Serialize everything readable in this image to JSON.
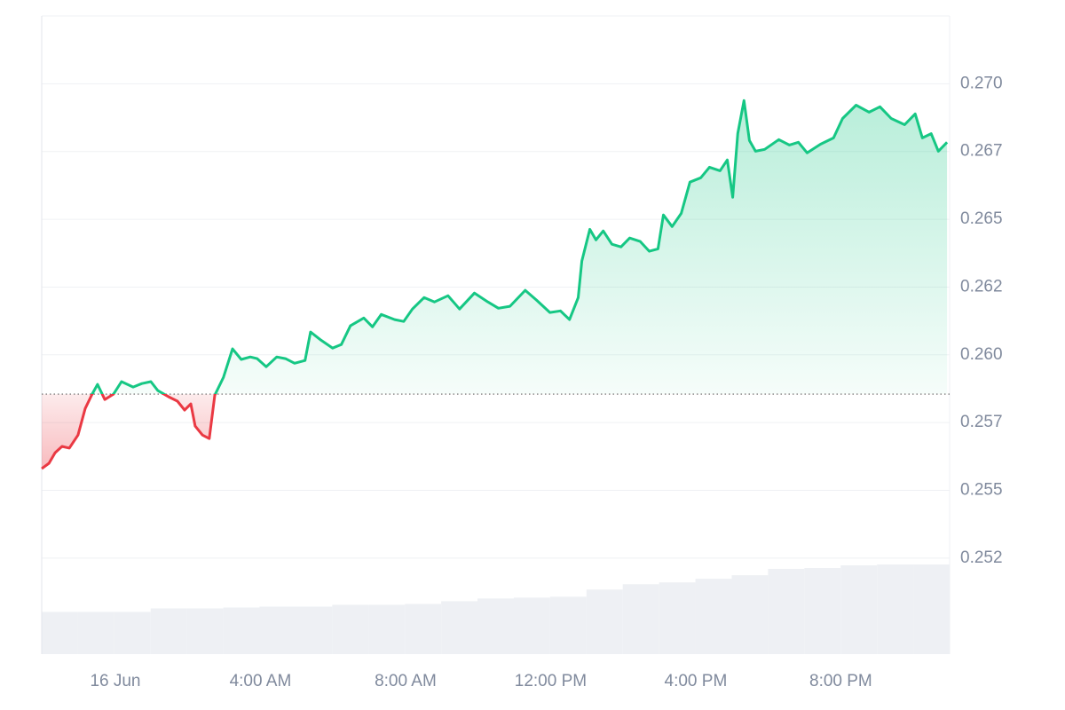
{
  "chart_data": {
    "type": "line",
    "x": [
      -2.03,
      -1.83,
      -1.66,
      -1.47,
      -1.27,
      -1.03,
      -0.83,
      -0.64,
      -0.49,
      -0.29,
      -0.05,
      0.17,
      0.49,
      0.73,
      0.98,
      1.17,
      1.47,
      1.71,
      1.91,
      2.08,
      2.2,
      2.4,
      2.59,
      2.74,
      2.98,
      3.23,
      3.47,
      3.72,
      3.91,
      4.16,
      4.45,
      4.69,
      4.94,
      5.23,
      5.38,
      5.67,
      5.99,
      6.23,
      6.48,
      6.85,
      7.09,
      7.33,
      7.7,
      7.95,
      8.19,
      8.51,
      8.8,
      9.17,
      9.49,
      9.9,
      10.27,
      10.56,
      10.88,
      11.3,
      11.61,
      11.98,
      12.27,
      12.52,
      12.76,
      12.86,
      13.08,
      13.25,
      13.45,
      13.69,
      13.94,
      14.18,
      14.47,
      14.72,
      14.96,
      15.11,
      15.35,
      15.6,
      15.84,
      16.14,
      16.38,
      16.67,
      16.87,
      17.02,
      17.16,
      17.33,
      17.48,
      17.65,
      17.9,
      18.29,
      18.58,
      18.83,
      19.07,
      19.44,
      19.8,
      20.05,
      20.42,
      20.78,
      21.08,
      21.39,
      21.76,
      22.05,
      22.25,
      22.49,
      22.69,
      22.93
    ],
    "values": [
      0.2558,
      0.256,
      0.25639,
      0.25662,
      0.25656,
      0.25704,
      0.25802,
      0.25855,
      0.25891,
      0.25835,
      0.25855,
      0.25901,
      0.25881,
      0.25894,
      0.25901,
      0.25868,
      0.25845,
      0.25829,
      0.25796,
      0.25819,
      0.25737,
      0.25704,
      0.25691,
      0.25851,
      0.25917,
      0.26022,
      0.25983,
      0.25992,
      0.25986,
      0.25956,
      0.25992,
      0.25986,
      0.25969,
      0.25979,
      0.26084,
      0.26054,
      0.26025,
      0.26038,
      0.26107,
      0.26136,
      0.26103,
      0.26149,
      0.2613,
      0.26123,
      0.26169,
      0.26211,
      0.26195,
      0.26218,
      0.26169,
      0.26228,
      0.26195,
      0.26172,
      0.26179,
      0.26238,
      0.26202,
      0.26156,
      0.26162,
      0.2613,
      0.26211,
      0.26346,
      0.26463,
      0.26424,
      0.26457,
      0.26408,
      0.26398,
      0.26431,
      0.26418,
      0.26382,
      0.26391,
      0.26516,
      0.26473,
      0.26522,
      0.26637,
      0.26653,
      0.26692,
      0.26679,
      0.26719,
      0.26581,
      0.26817,
      0.26938,
      0.26791,
      0.26751,
      0.26758,
      0.26794,
      0.26774,
      0.26784,
      0.26745,
      0.26777,
      0.268,
      0.26872,
      0.26921,
      0.26895,
      0.26915,
      0.26872,
      0.26849,
      0.26889,
      0.268,
      0.26816,
      0.26751,
      0.26784
    ],
    "baseline": 0.25855,
    "up_color": "#16c784",
    "down_color": "#ea3943",
    "xlim": [
      -2.03,
      23
    ],
    "xticks": [
      {
        "value": 0,
        "label": "16 Jun"
      },
      {
        "value": 4,
        "label": "4:00 AM"
      },
      {
        "value": 8,
        "label": "8:00 AM"
      },
      {
        "value": 12,
        "label": "12:00 PM"
      },
      {
        "value": 16,
        "label": "4:00 PM"
      },
      {
        "value": 20,
        "label": "8:00 PM"
      }
    ],
    "ylim": [
      0.24896,
      0.2725
    ],
    "yticks": [
      {
        "value": 0.2525,
        "label": "0.252"
      },
      {
        "value": 0.255,
        "label": "0.255"
      },
      {
        "value": 0.2575,
        "label": "0.257"
      },
      {
        "value": 0.26,
        "label": "0.260"
      },
      {
        "value": 0.2625,
        "label": "0.262"
      },
      {
        "value": 0.265,
        "label": "0.265"
      },
      {
        "value": 0.2675,
        "label": "0.267"
      },
      {
        "value": 0.27,
        "label": "0.270"
      }
    ],
    "grid": true,
    "volume": {
      "color": "#eef0f4",
      "values": [
        47,
        47,
        47,
        51,
        51,
        52,
        53,
        53,
        55,
        55,
        56,
        59,
        62,
        63,
        64,
        72,
        78,
        80,
        84,
        88,
        95,
        96,
        99,
        100,
        100
      ]
    }
  }
}
